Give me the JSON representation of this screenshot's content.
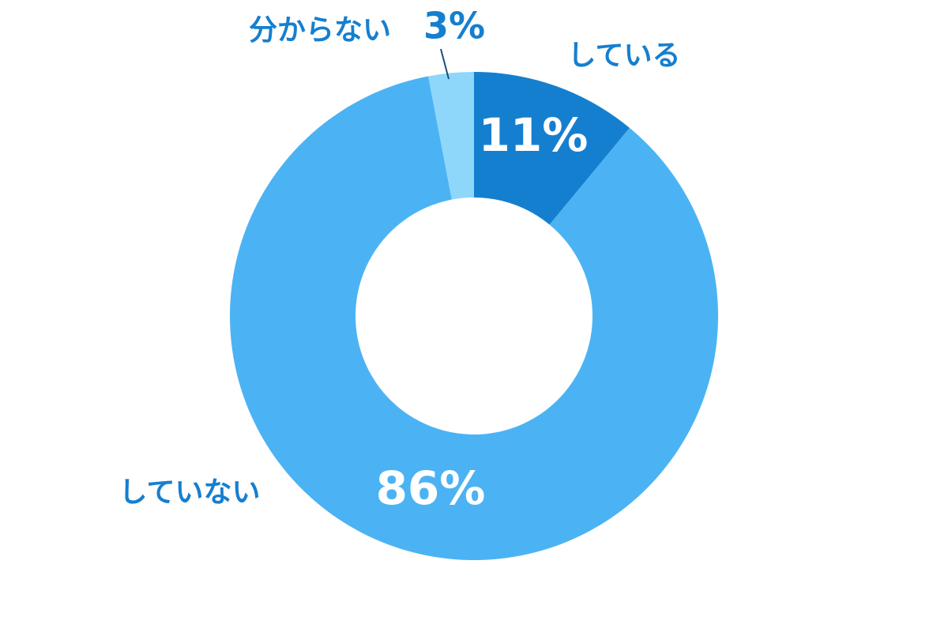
{
  "chart_data": {
    "type": "donut",
    "categories": [
      "している",
      "していない",
      "分からない"
    ],
    "values": [
      11,
      86,
      3
    ],
    "value_labels": [
      "11%",
      "86%",
      "3%"
    ],
    "colors": [
      "#157fcf",
      "#4bb3f3",
      "#8ed7fb"
    ]
  }
}
